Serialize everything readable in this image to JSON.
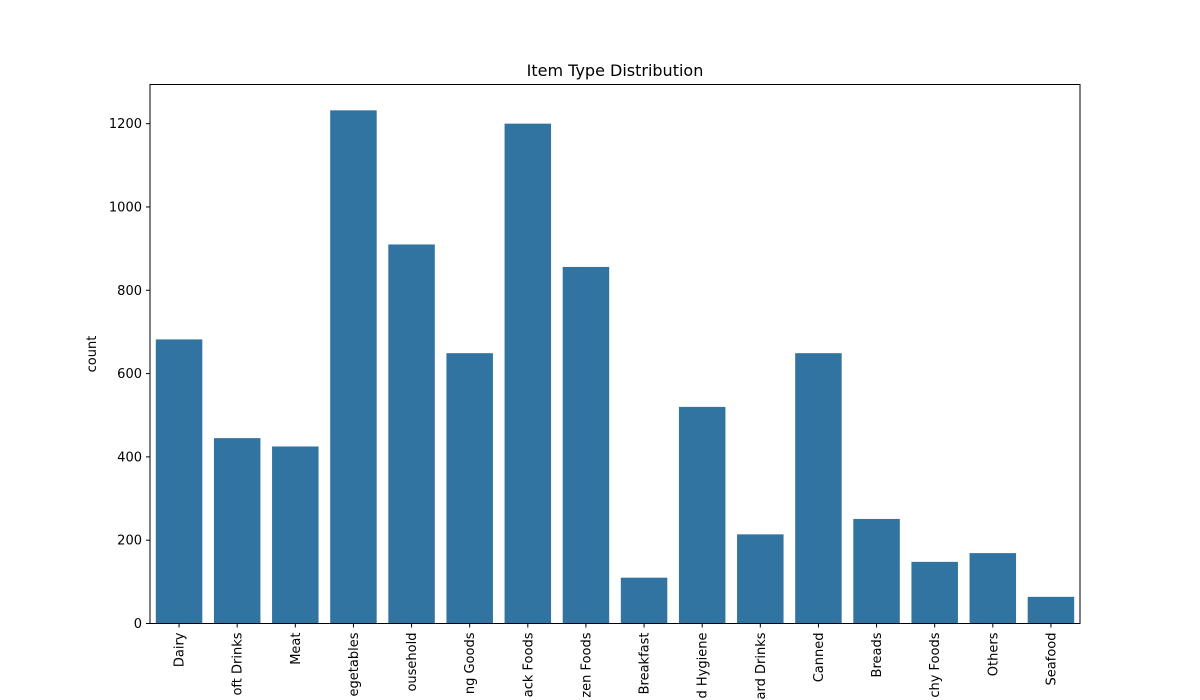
{
  "chart_data": {
    "type": "bar",
    "title": "Item Type Distribution",
    "xlabel": "",
    "ylabel": "count",
    "ylim": [
      0,
      1294
    ],
    "yticks": [
      0,
      200,
      400,
      600,
      800,
      1000,
      1200
    ],
    "categories": [
      "Dairy",
      "oft Drinks",
      "Meat",
      "egetables",
      "ousehold",
      "ng Goods",
      "ack Foods",
      "zen Foods",
      "Breakfast",
      "d Hygiene",
      "ard Drinks",
      "Canned",
      "Breads",
      "chy Foods",
      "Others",
      "Seafood"
    ],
    "values": [
      682,
      445,
      425,
      1232,
      910,
      649,
      1200,
      856,
      110,
      520,
      214,
      649,
      251,
      148,
      169,
      64
    ],
    "bar_color": "#3274a1",
    "grid": false,
    "legend": "none"
  }
}
